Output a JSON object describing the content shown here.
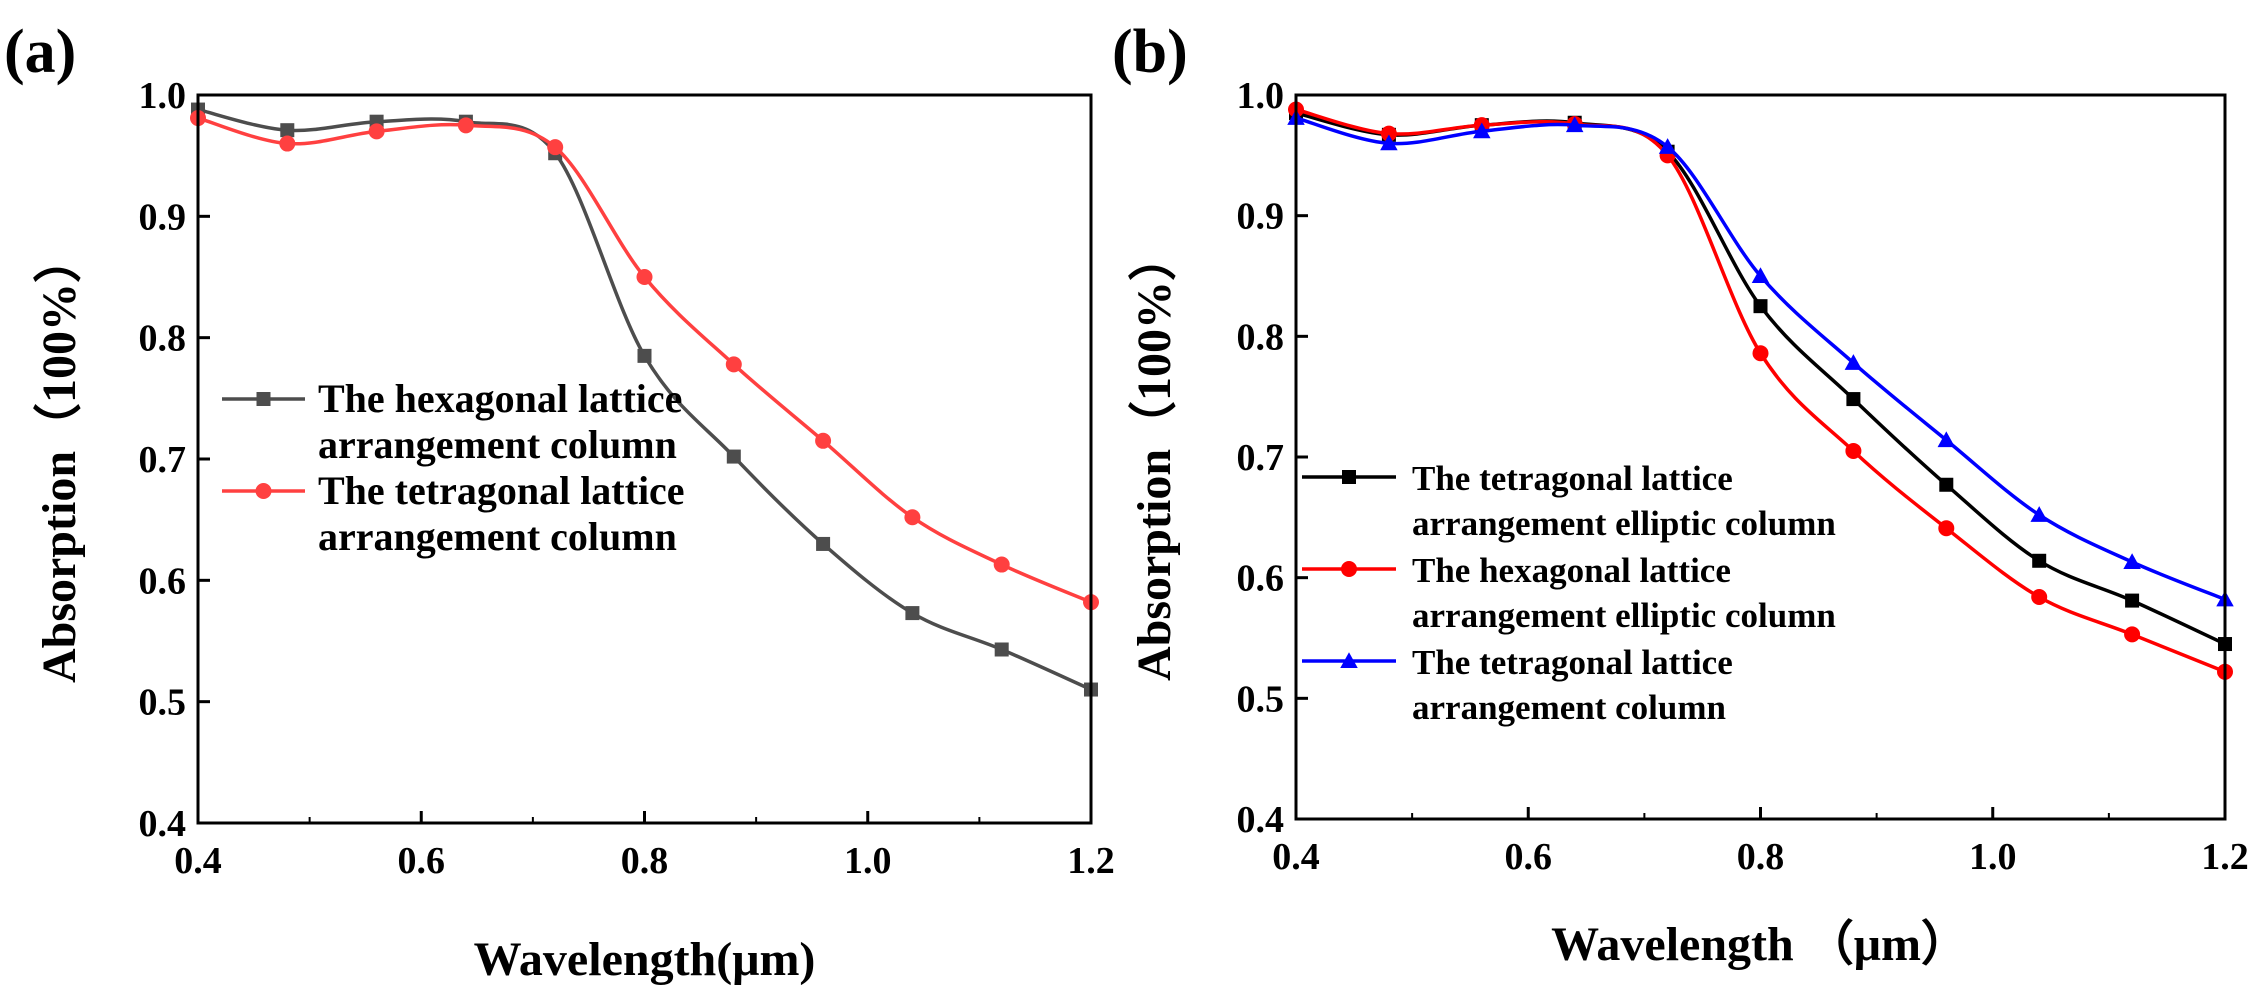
{
  "chart_data": [
    {
      "panel_label": "(a)",
      "type": "line",
      "xlabel": "Wavelength(μm)",
      "ylabel": "Absorption（100%）",
      "xlim": [
        0.4,
        1.2
      ],
      "ylim": [
        0.4,
        1.0
      ],
      "xticks": [
        "0.4",
        "0.6",
        "0.8",
        "1.0",
        "1.2"
      ],
      "yticks": [
        "0.4",
        "0.5",
        "0.6",
        "0.7",
        "0.8",
        "0.9",
        "1.0"
      ],
      "legend_position": "lower-left",
      "grid": false,
      "series": [
        {
          "name_lines": [
            "The hexagonal lattice",
            "arrangement column"
          ],
          "color": "#4d4d4d",
          "marker": "square",
          "x": [
            0.4,
            0.48,
            0.56,
            0.64,
            0.72,
            0.8,
            0.88,
            0.96,
            1.04,
            1.12,
            1.2
          ],
          "y": [
            0.988,
            0.971,
            0.978,
            0.978,
            0.952,
            0.785,
            0.702,
            0.63,
            0.573,
            0.543,
            0.51
          ]
        },
        {
          "name_lines": [
            "The tetragonal lattice",
            "arrangement column"
          ],
          "color": "#ff4040",
          "marker": "circle",
          "x": [
            0.4,
            0.48,
            0.56,
            0.64,
            0.72,
            0.8,
            0.88,
            0.96,
            1.04,
            1.12,
            1.2
          ],
          "y": [
            0.981,
            0.96,
            0.97,
            0.975,
            0.957,
            0.85,
            0.778,
            0.715,
            0.652,
            0.613,
            0.582
          ]
        }
      ]
    },
    {
      "panel_label": "(b)",
      "type": "line",
      "xlabel": "Wavelength （μm）",
      "ylabel": "Absorption（100%）",
      "xlim": [
        0.4,
        1.2
      ],
      "ylim": [
        0.4,
        1.0
      ],
      "xticks": [
        "0.4",
        "0.6",
        "0.8",
        "1.0",
        "1.2"
      ],
      "yticks": [
        "0.4",
        "0.5",
        "0.6",
        "0.7",
        "0.8",
        "0.9",
        "1.0"
      ],
      "legend_position": "lower-left",
      "grid": false,
      "series": [
        {
          "name_lines": [
            "The tetragonal lattice",
            "arrangement elliptic column"
          ],
          "color": "#000000",
          "marker": "square",
          "x": [
            0.4,
            0.48,
            0.56,
            0.64,
            0.72,
            0.8,
            0.88,
            0.96,
            1.04,
            1.12,
            1.2
          ],
          "y": [
            0.985,
            0.967,
            0.975,
            0.977,
            0.953,
            0.825,
            0.748,
            0.677,
            0.614,
            0.581,
            0.545
          ]
        },
        {
          "name_lines": [
            "The hexagonal lattice",
            "arrangement elliptic column"
          ],
          "color": "#ff0000",
          "marker": "circle",
          "x": [
            0.4,
            0.48,
            0.56,
            0.64,
            0.72,
            0.8,
            0.88,
            0.96,
            1.04,
            1.12,
            1.2
          ],
          "y": [
            0.988,
            0.968,
            0.975,
            0.976,
            0.95,
            0.786,
            0.705,
            0.641,
            0.584,
            0.553,
            0.522
          ]
        },
        {
          "name_lines": [
            "The tetragonal lattice",
            "arrangement column"
          ],
          "color": "#0000ff",
          "marker": "triangle",
          "x": [
            0.4,
            0.48,
            0.56,
            0.64,
            0.72,
            0.8,
            0.88,
            0.96,
            1.04,
            1.12,
            1.2
          ],
          "y": [
            0.981,
            0.96,
            0.97,
            0.975,
            0.957,
            0.85,
            0.778,
            0.714,
            0.652,
            0.613,
            0.582
          ]
        }
      ]
    }
  ]
}
